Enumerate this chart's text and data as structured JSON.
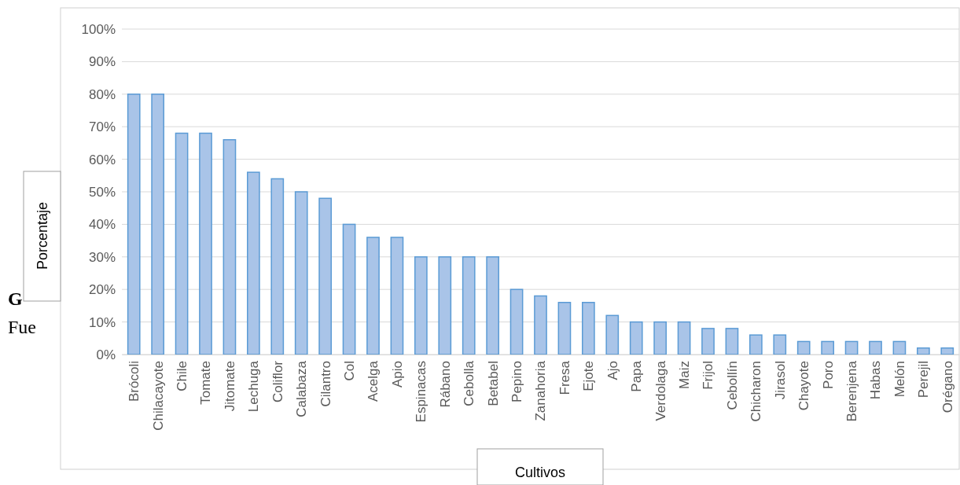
{
  "chart_data": {
    "type": "bar",
    "xlabel": "Cultivos",
    "ylabel": "Porcentaje",
    "categories": [
      "Brócoli",
      "Chilacayote",
      "Chile",
      "Tomate",
      "Jitomate",
      "Lechuga",
      "Coliflor",
      "Calabaza",
      "Cilantro",
      "Col",
      "Acelga",
      "Apio",
      "Espinacas",
      "Rábano",
      "Cebolla",
      "Betabel",
      "Pepino",
      "Zanahoria",
      "Fresa",
      "Ejote",
      "Ajo",
      "Papa",
      "Verdolaga",
      "Maiz",
      "Frijol",
      "Cebollín",
      "Chicharon",
      "Jirasol",
      "Chayote",
      "Poro",
      "Berenjena",
      "Habas",
      "Melón",
      "Perejil",
      "Orégano"
    ],
    "values": [
      80,
      80,
      68,
      68,
      66,
      56,
      54,
      50,
      48,
      40,
      36,
      36,
      30,
      30,
      30,
      30,
      20,
      18,
      16,
      16,
      12,
      10,
      10,
      10,
      8,
      8,
      6,
      6,
      4,
      4,
      4,
      4,
      4,
      2,
      2
    ],
    "color": "#a9c4e8",
    "ylim": [
      0,
      100
    ],
    "yticks": [
      {
        "value": 0,
        "label": "0%"
      },
      {
        "value": 10,
        "label": "10%"
      },
      {
        "value": 20,
        "label": "20%"
      },
      {
        "value": 30,
        "label": "30%"
      },
      {
        "value": 40,
        "label": "40%"
      },
      {
        "value": 50,
        "label": "50%"
      },
      {
        "value": 60,
        "label": "60%"
      },
      {
        "value": 70,
        "label": "70%"
      },
      {
        "value": 80,
        "label": "80%"
      },
      {
        "value": 90,
        "label": "90%"
      },
      {
        "value": 100,
        "label": "100%"
      }
    ],
    "grid": "y",
    "annotations": [
      "G",
      "Fue"
    ]
  }
}
